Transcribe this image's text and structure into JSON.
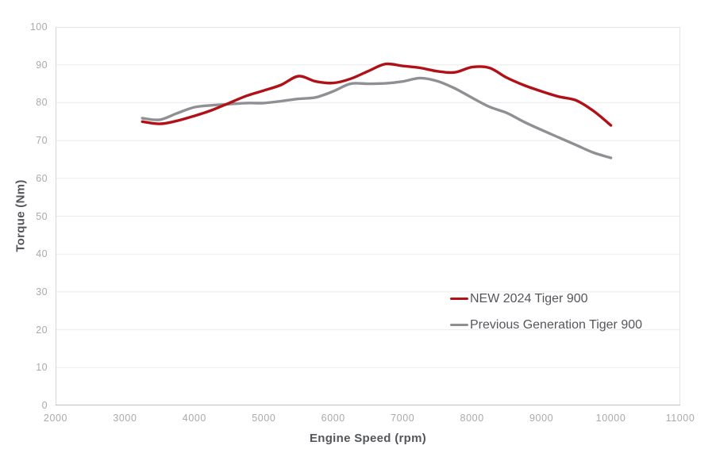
{
  "chart_data": {
    "type": "line",
    "title": "",
    "xlabel": "Engine Speed (rpm)",
    "ylabel": "Torque (Nm)",
    "xlim": [
      2000,
      11000
    ],
    "ylim": [
      0,
      100
    ],
    "x_ticks": [
      2000,
      3000,
      4000,
      5000,
      6000,
      7000,
      8000,
      9000,
      10000,
      11000
    ],
    "y_ticks": [
      0,
      10,
      20,
      30,
      40,
      50,
      60,
      70,
      80,
      90,
      100
    ],
    "grid": "horizontal-only",
    "legend_position": "inside-right-middle",
    "x": [
      3250,
      3500,
      3750,
      4000,
      4250,
      4500,
      4750,
      5000,
      5250,
      5500,
      5750,
      6000,
      6250,
      6500,
      6750,
      7000,
      7250,
      7500,
      7750,
      8000,
      8250,
      8500,
      8750,
      9000,
      9250,
      9500,
      9750,
      10000
    ],
    "series": [
      {
        "name": "NEW 2024 Tiger 900",
        "color": "#b11116",
        "values": [
          75.0,
          74.4,
          75.2,
          76.5,
          78.0,
          79.9,
          81.8,
          83.2,
          84.7,
          87.0,
          85.6,
          85.2,
          86.3,
          88.3,
          90.2,
          89.7,
          89.2,
          88.3,
          88.0,
          89.4,
          89.2,
          86.6,
          84.6,
          83.0,
          81.6,
          80.6,
          77.8,
          74.0
        ]
      },
      {
        "name": "Previous Generation Tiger 900",
        "color": "#909094",
        "values": [
          75.9,
          75.5,
          77.2,
          78.8,
          79.3,
          79.6,
          79.9,
          79.9,
          80.4,
          81.0,
          81.4,
          83.0,
          85.0,
          85.0,
          85.1,
          85.6,
          86.5,
          85.7,
          83.8,
          81.3,
          78.9,
          77.3,
          74.9,
          72.8,
          70.8,
          68.8,
          66.8,
          65.4
        ]
      }
    ]
  },
  "colors": {
    "tick_label": "#a9a9ad",
    "axis_title": "#54565a",
    "grid_line": "#ebebeb",
    "plot_border": "#e3e3e3",
    "left_axis_line": "#d6d6d6",
    "bottom_axis_line": "#c0c0c0",
    "background": "#ffffff"
  }
}
